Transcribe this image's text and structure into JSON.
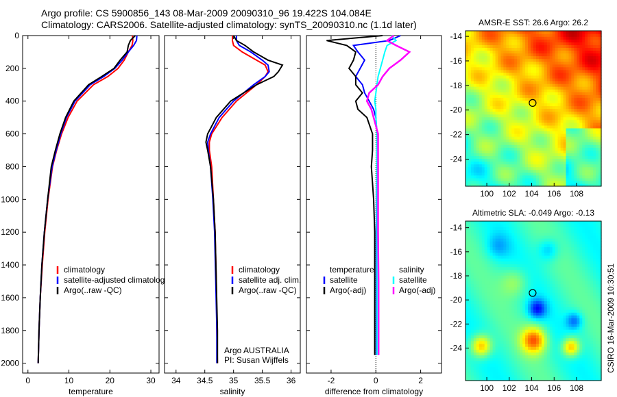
{
  "title_line1": "Argo profile: CS 5900856_143 08-Mar-2009 20090310_96 19.422S 104.084E",
  "title_line2": "Climatology: CARS2006. Satellite-adjusted climatology: synTS_20090310.nc (1.1d later)",
  "side_stamp": "CSIRO 16-Mar-2009 10:30:51",
  "float_info": [
    "Argo AUSTRALIA",
    "PI: Susan Wijffels"
  ],
  "colors": {
    "climatology": "#ff0000",
    "satellite": "#0000ff",
    "argo": "#000000",
    "sal_satellite": "#00ffff",
    "sal_argo": "#ff00ff"
  },
  "chart_data": [
    {
      "type": "line",
      "xlabel": "temperature",
      "ylabel": "",
      "xlim": [
        -1.3,
        32
      ],
      "ylim": [
        0,
        2060
      ],
      "xticks": [
        0,
        10,
        20,
        30
      ],
      "yticks": [
        0,
        200,
        400,
        600,
        800,
        1000,
        1200,
        1400,
        1600,
        1800,
        2000
      ],
      "legend": [
        "climatology",
        "satellite-adjusted climatology",
        "Argo(..raw -QC)"
      ],
      "depth": [
        0,
        30,
        60,
        100,
        150,
        200,
        250,
        300,
        400,
        500,
        600,
        700,
        800,
        1000,
        1200,
        1400,
        1600,
        1800,
        2000
      ],
      "series": [
        {
          "name": "climatology",
          "values": [
            25.5,
            25.6,
            25.4,
            24.5,
            23.5,
            22.0,
            19.5,
            16.0,
            12.0,
            9.8,
            8.2,
            7.0,
            6.0,
            4.9,
            4.1,
            3.5,
            3.0,
            2.7,
            2.5
          ]
        },
        {
          "name": "satellite-adjusted climatology",
          "values": [
            26.6,
            26.5,
            25.8,
            24.5,
            23.0,
            21.2,
            18.5,
            15.2,
            11.5,
            9.4,
            8.0,
            6.9,
            5.9,
            4.8,
            4.0,
            3.4,
            3.0,
            2.7,
            2.5
          ]
        },
        {
          "name": "Argo(..raw -QC)",
          "values": [
            26.2,
            25.0,
            24.5,
            24.2,
            22.5,
            21.0,
            18.0,
            14.8,
            11.2,
            9.2,
            7.8,
            6.7,
            5.7,
            4.8,
            4.0,
            3.4,
            3.0,
            2.7,
            2.5
          ]
        }
      ]
    },
    {
      "type": "line",
      "xlabel": "salinity",
      "ylabel": "",
      "xlim": [
        33.8,
        36.16
      ],
      "ylim": [
        0,
        2060
      ],
      "xticks": [
        34,
        34.5,
        35,
        35.5,
        36
      ],
      "yticks": [
        0,
        200,
        400,
        600,
        800,
        1000,
        1200,
        1400,
        1600,
        1800,
        2000
      ],
      "legend": [
        "climatology",
        "satellite adj. clim.",
        "Argo(..raw -QC)"
      ],
      "depth": [
        0,
        30,
        60,
        100,
        150,
        180,
        220,
        250,
        300,
        400,
        500,
        600,
        650,
        700,
        800,
        1000,
        1200,
        1500,
        1800,
        2000
      ],
      "series": [
        {
          "name": "climatology",
          "values": [
            34.98,
            34.98,
            35.0,
            35.15,
            35.4,
            35.55,
            35.6,
            35.55,
            35.4,
            35.05,
            34.8,
            34.62,
            34.58,
            34.58,
            34.62,
            34.65,
            34.68,
            34.7,
            34.71,
            34.72
          ]
        },
        {
          "name": "satellite adj. clim.",
          "values": [
            35.05,
            35.05,
            35.1,
            35.3,
            35.5,
            35.6,
            35.62,
            35.55,
            35.35,
            35.0,
            34.75,
            34.6,
            34.55,
            34.56,
            34.6,
            34.64,
            34.67,
            34.69,
            34.71,
            34.71
          ]
        },
        {
          "name": "Argo(..raw -QC)",
          "values": [
            35.0,
            35.05,
            35.2,
            35.35,
            35.6,
            35.85,
            35.78,
            35.7,
            35.4,
            34.95,
            34.7,
            34.55,
            34.52,
            34.55,
            34.6,
            34.65,
            34.68,
            34.7,
            34.72,
            34.72
          ]
        }
      ]
    },
    {
      "type": "line",
      "xlabel": "difference from climatology",
      "ylabel": "",
      "xlim": [
        -3.1,
        2.93
      ],
      "ylim": [
        0,
        2060
      ],
      "xticks": [
        -2,
        0,
        2
      ],
      "yticks": [
        0,
        200,
        400,
        600,
        800,
        1000,
        1200,
        1400,
        1600,
        1800,
        2000
      ],
      "legend_headers": [
        "temperature",
        "salinity"
      ],
      "legend": [
        "satellite",
        "Argo(-adj)",
        "satellite",
        "Argo(-adj)"
      ],
      "depth": [
        0,
        30,
        60,
        100,
        150,
        200,
        250,
        300,
        350,
        400,
        450,
        500,
        600,
        700,
        800,
        1000,
        1200,
        1500,
        1800,
        1950
      ],
      "series": [
        {
          "name": "temperature satellite",
          "values": [
            1.1,
            0.6,
            -1.0,
            -0.8,
            -0.5,
            -0.7,
            -0.9,
            -0.6,
            -0.5,
            -0.3,
            -0.1,
            0,
            0.05,
            0.05,
            0.05,
            0.03,
            0.02,
            0.02,
            0.02,
            0.02
          ]
        },
        {
          "name": "temperature Argo(-adj)",
          "values": [
            0.3,
            -2.2,
            -1.3,
            -0.9,
            -1.0,
            -1.2,
            -0.9,
            -0.9,
            -0.6,
            -0.9,
            -0.8,
            -0.4,
            -0.15,
            -0.15,
            -0.2,
            -0.1,
            -0.05,
            -0.05,
            -0.05,
            -0.05
          ]
        },
        {
          "name": "salinity satellite",
          "values": [
            0.7,
            0.9,
            0.5,
            0.4,
            0.3,
            0.2,
            0.1,
            0.05,
            0,
            -0.05,
            0,
            0,
            0.05,
            0.05,
            0.05,
            0.05,
            0.05,
            0.05,
            0.05,
            0.05
          ]
        },
        {
          "name": "salinity Argo(-adj)",
          "values": [
            0.8,
            0.5,
            0.9,
            1.5,
            1.1,
            0.6,
            0.3,
            0.1,
            -0.3,
            -0.4,
            -0.2,
            -0.1,
            0.1,
            0.1,
            0.1,
            0.1,
            0.1,
            0.12,
            0.12,
            0.12
          ]
        }
      ]
    },
    {
      "type": "heatmap",
      "title": "AMSR-E SST: 26.6 Argo: 26.2",
      "xlim": [
        98.1,
        110.2
      ],
      "ylim": [
        -26.2,
        -13.55
      ],
      "xticks": [
        100,
        102,
        104,
        106,
        108
      ],
      "yticks": [
        -14,
        -16,
        -18,
        -20,
        -22,
        -24
      ],
      "marker": [
        104.084,
        -19.422
      ],
      "field": "sst"
    },
    {
      "type": "heatmap",
      "title": "Altimetric SLA: -0.049 Argo: -0.13",
      "xlim": [
        98.1,
        110.2
      ],
      "ylim": [
        -26.7,
        -13.45
      ],
      "xticks": [
        100,
        102,
        104,
        106,
        108
      ],
      "yticks": [
        -14,
        -16,
        -18,
        -20,
        -22,
        -24
      ],
      "marker": [
        104.084,
        -19.422
      ],
      "field": "sla"
    }
  ]
}
